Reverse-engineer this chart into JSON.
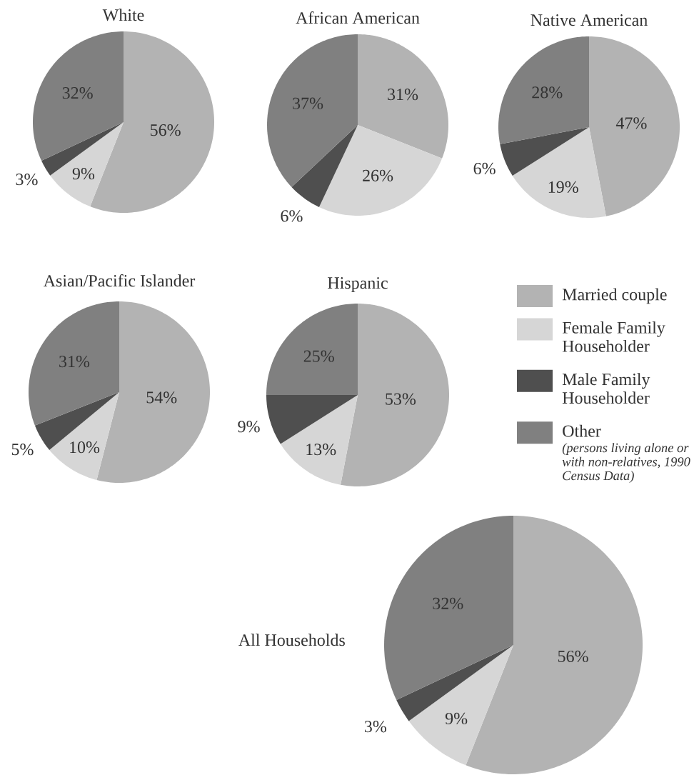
{
  "chart_data": [
    {
      "type": "pie",
      "title": "White",
      "categories": [
        null,
        null,
        null,
        null
      ],
      "values": [
        56,
        9,
        3,
        32
      ],
      "colors": [
        "#b3b3b3",
        "#d6d6d6",
        "#4f4f4f",
        "#808080"
      ],
      "value_labels": [
        "56%",
        "9%",
        "3%",
        "32%"
      ]
    },
    {
      "type": "pie",
      "title": "African American",
      "categories": [
        null,
        null,
        null,
        null
      ],
      "values": [
        31,
        26,
        6,
        37
      ],
      "colors": [
        "#b3b3b3",
        "#d6d6d6",
        "#4f4f4f",
        "#808080"
      ],
      "value_labels": [
        "31%",
        "26%",
        "6%",
        "37%"
      ]
    },
    {
      "type": "pie",
      "title": "Native American",
      "categories": [
        null,
        null,
        null,
        null
      ],
      "values": [
        47,
        19,
        6,
        28
      ],
      "colors": [
        "#b3b3b3",
        "#d6d6d6",
        "#4f4f4f",
        "#808080"
      ],
      "value_labels": [
        "47%",
        "19%",
        "6%",
        "28%"
      ]
    },
    {
      "type": "pie",
      "title": "Asian/Pacific Islander",
      "categories": [
        null,
        null,
        null,
        null
      ],
      "values": [
        54,
        10,
        5,
        31
      ],
      "colors": [
        "#b3b3b3",
        "#d6d6d6",
        "#4f4f4f",
        "#808080"
      ],
      "value_labels": [
        "54%",
        "10%",
        "5%",
        "31%"
      ]
    },
    {
      "type": "pie",
      "title": "Hispanic",
      "categories": [
        "Married couple",
        "Female Family Householder",
        "Male Family Householder",
        "Other"
      ],
      "values": [
        53,
        13,
        9,
        25
      ],
      "colors": [
        "#b3b3b3",
        "#d6d6d6",
        "#4f4f4f",
        "#808080"
      ],
      "value_labels": [
        "53%",
        "13%",
        "9%",
        "25%"
      ],
      "legend": "right",
      "annotations": [
        "(persons living alone or with non-relatives, 1990 Census Data)"
      ]
    },
    {
      "type": "pie",
      "title": "All Households",
      "categories": [
        null,
        null,
        null,
        null
      ],
      "values": [
        56,
        9,
        3,
        32
      ],
      "colors": [
        "#b3b3b3",
        "#d6d6d6",
        "#4f4f4f",
        "#808080"
      ],
      "value_labels": [
        "56%",
        "9%",
        "3%",
        "32%"
      ]
    }
  ]
}
